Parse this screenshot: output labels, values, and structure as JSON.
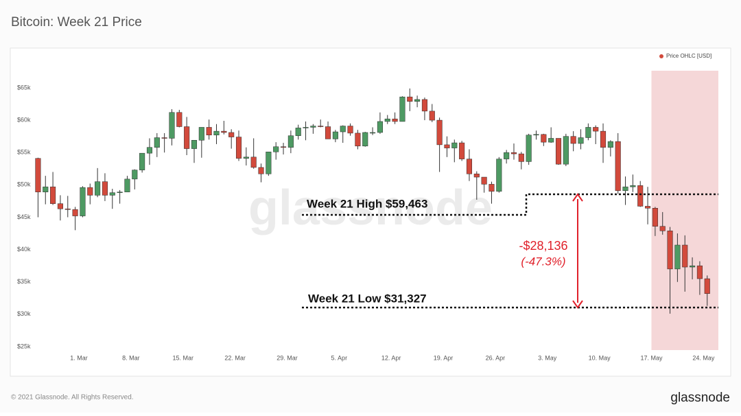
{
  "chart_data": {
    "type": "candlestick",
    "title": "Bitcoin: Week 21 Price",
    "legend": "top-right",
    "x": [
      "02-23",
      "02-24",
      "02-25",
      "02-26",
      "02-27",
      "02-28",
      "03-01",
      "03-02",
      "03-03",
      "03-04",
      "03-05",
      "03-06",
      "03-07",
      "03-08",
      "03-09",
      "03-10",
      "03-11",
      "03-12",
      "03-13",
      "03-14",
      "03-15",
      "03-16",
      "03-17",
      "03-18",
      "03-19",
      "03-20",
      "03-21",
      "03-22",
      "03-23",
      "03-24",
      "03-25",
      "03-26",
      "03-27",
      "03-28",
      "03-29",
      "03-30",
      "03-31",
      "04-01",
      "04-02",
      "04-03",
      "04-04",
      "04-05",
      "04-06",
      "04-07",
      "04-08",
      "04-09",
      "04-10",
      "04-11",
      "04-12",
      "04-13",
      "04-14",
      "04-15",
      "04-16",
      "04-17",
      "04-18",
      "04-19",
      "04-20",
      "04-21",
      "04-22",
      "04-23",
      "04-24",
      "04-25",
      "04-26",
      "04-27",
      "04-28",
      "04-29",
      "04-30",
      "05-01",
      "05-02",
      "05-03",
      "05-04",
      "05-05",
      "05-06",
      "05-07",
      "05-08",
      "05-09",
      "05-10",
      "05-11",
      "05-12",
      "05-13",
      "05-14",
      "05-15",
      "05-16",
      "05-17",
      "05-18",
      "05-19",
      "05-20",
      "05-21",
      "05-22",
      "05-23",
      "05-24"
    ],
    "series": [
      {
        "name": "Price OHLC [USD]",
        "color": "#d24a3c",
        "up_color": "#4e9a63",
        "down_color": "#d24a3c",
        "open": [
          54100,
          48900,
          49700,
          47100,
          46300,
          46200,
          45200,
          49600,
          48400,
          50500,
          48400,
          48800,
          48900,
          50900,
          52300,
          54900,
          55800,
          57300,
          57200,
          61200,
          59000,
          55600,
          56900,
          58900,
          57700,
          58300,
          58100,
          57400,
          54100,
          54300,
          52700,
          51700,
          55100,
          55900,
          55800,
          57600,
          58800,
          58900,
          59100,
          59000,
          57100,
          58200,
          59100,
          58000,
          56000,
          58100,
          58100,
          59800,
          60200,
          59800,
          63600,
          62900,
          63200,
          61400,
          60000,
          56200,
          55700,
          56500,
          54000,
          51700,
          51200,
          50100,
          49000,
          54000,
          55000,
          54800,
          53600,
          57700,
          57800,
          56600,
          57200,
          53200,
          57500,
          56400,
          57300,
          58900,
          58300,
          55800,
          56700,
          49100,
          49700,
          49900,
          46700,
          46400,
          43600,
          42900,
          37000,
          40700,
          37300,
          37500,
          35500
        ],
        "high": [
          54200,
          51400,
          52000,
          48400,
          48300,
          46600,
          49800,
          50200,
          52600,
          51800,
          49400,
          49200,
          51400,
          52400,
          54900,
          57200,
          58000,
          58000,
          61700,
          61600,
          60500,
          56900,
          58900,
          60100,
          59400,
          59900,
          58600,
          58400,
          55800,
          57200,
          53300,
          55100,
          56600,
          56500,
          58400,
          59300,
          59800,
          59400,
          60100,
          59800,
          58500,
          59200,
          59500,
          58500,
          58200,
          58900,
          61200,
          60800,
          61200,
          63700,
          64900,
          63800,
          63500,
          62500,
          60400,
          57500,
          57000,
          56800,
          55500,
          52100,
          51200,
          50500,
          54300,
          55400,
          56400,
          55100,
          57900,
          58400,
          57900,
          58900,
          57200,
          57900,
          58300,
          58600,
          59500,
          59200,
          59500,
          56900,
          58000,
          51300,
          51600,
          50600,
          49700,
          46600,
          45800,
          43500,
          42500,
          42200,
          38800,
          38200,
          36000
        ],
        "low": [
          45000,
          47000,
          46900,
          44500,
          45000,
          43000,
          45000,
          47000,
          48100,
          47500,
          46300,
          47100,
          48900,
          49300,
          51900,
          53100,
          54300,
          55000,
          56100,
          58900,
          54600,
          53400,
          54200,
          57000,
          56300,
          57800,
          55600,
          53700,
          53000,
          52500,
          50400,
          51400,
          53900,
          54700,
          54900,
          57000,
          56900,
          57900,
          58900,
          57100,
          56600,
          56500,
          57600,
          55500,
          55900,
          57700,
          57900,
          59400,
          59400,
          59800,
          61400,
          62000,
          60000,
          59700,
          52000,
          54300,
          53500,
          53700,
          50600,
          47700,
          48800,
          47100,
          48800,
          53300,
          53900,
          52400,
          53100,
          57000,
          56000,
          56500,
          53100,
          52900,
          55200,
          55500,
          56900,
          56300,
          53400,
          54400,
          48600,
          46900,
          48900,
          46600,
          43900,
          42100,
          42300,
          30100,
          35000,
          33500,
          35400,
          33000,
          31300
        ],
        "close": [
          48900,
          49700,
          47100,
          46300,
          46200,
          45200,
          49600,
          48400,
          50500,
          48400,
          48800,
          48900,
          50900,
          52300,
          54900,
          55800,
          57300,
          57200,
          61200,
          59000,
          55600,
          56900,
          58900,
          57700,
          58300,
          58100,
          57400,
          54100,
          54300,
          52700,
          51700,
          55100,
          55900,
          55800,
          57600,
          58800,
          58900,
          59100,
          59000,
          57100,
          58200,
          59100,
          58000,
          56000,
          58100,
          58100,
          59800,
          60200,
          59800,
          63600,
          62900,
          63200,
          61400,
          60000,
          56200,
          55700,
          56500,
          54000,
          51700,
          51200,
          50100,
          49000,
          54000,
          55000,
          54800,
          53600,
          57700,
          57800,
          56600,
          57200,
          53200,
          57500,
          56400,
          57300,
          58900,
          58300,
          55800,
          56700,
          49100,
          49700,
          49900,
          46700,
          46400,
          43600,
          42900,
          37000,
          40700,
          37300,
          37500,
          35500,
          33200
        ]
      }
    ],
    "xlim": [
      "02-23",
      "05-26"
    ],
    "xticks": [
      {
        "value": "03-01",
        "label": "1. Mar"
      },
      {
        "value": "03-08",
        "label": "8. Mar"
      },
      {
        "value": "03-15",
        "label": "15. Mar"
      },
      {
        "value": "03-22",
        "label": "22. Mar"
      },
      {
        "value": "03-29",
        "label": "29. Mar"
      },
      {
        "value": "04-05",
        "label": "5. Apr"
      },
      {
        "value": "04-12",
        "label": "12. Apr"
      },
      {
        "value": "04-19",
        "label": "19. Apr"
      },
      {
        "value": "04-26",
        "label": "26. Apr"
      },
      {
        "value": "05-03",
        "label": "3. May"
      },
      {
        "value": "05-10",
        "label": "10. May"
      },
      {
        "value": "05-17",
        "label": "17. May"
      },
      {
        "value": "05-24",
        "label": "24. May"
      }
    ],
    "ylim": [
      24000,
      71000
    ],
    "yticks": [
      {
        "value": 25000,
        "label": "$25k"
      },
      {
        "value": 30000,
        "label": "$30k"
      },
      {
        "value": 35000,
        "label": "$35k"
      },
      {
        "value": 40000,
        "label": "$40k"
      },
      {
        "value": 45000,
        "label": "$45k"
      },
      {
        "value": 50000,
        "label": "$50k"
      },
      {
        "value": 55000,
        "label": "$55k"
      },
      {
        "value": 60000,
        "label": "$60k"
      },
      {
        "value": 65000,
        "label": "$65k"
      }
    ],
    "highlight": {
      "from": "05-17",
      "to": "05-26",
      "color": "#f2c9cb"
    },
    "annotations": {
      "high": "Week 21 High $59,463",
      "low": "Week 21 Low $31,327",
      "change": "-$28,136",
      "change_pct": "(-47.3%)"
    },
    "watermark": "glassnode",
    "footer": "© 2021 Glassnode. All Rights Reserved.",
    "logo": "glassnode"
  }
}
